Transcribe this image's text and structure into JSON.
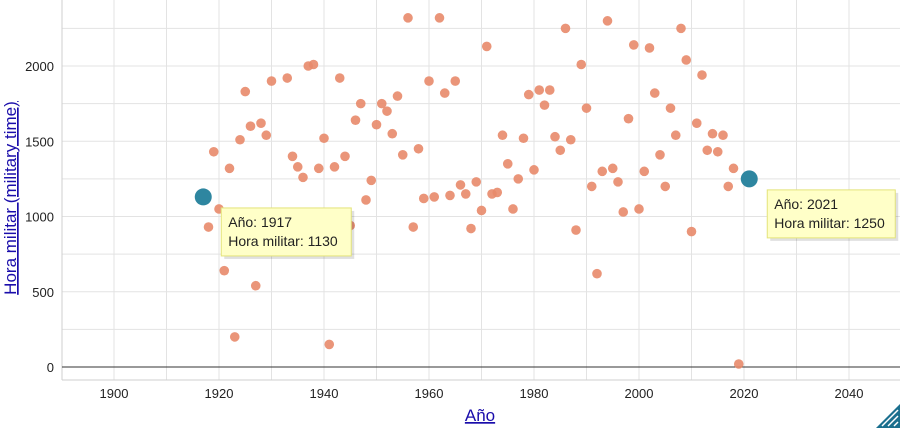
{
  "chart_data": {
    "type": "scatter",
    "xlabel": "Año",
    "ylabel": "Hora militar (military time)",
    "xlim": [
      1890,
      2050
    ],
    "ylim": [
      -50,
      2400
    ],
    "xticks": [
      1900,
      1920,
      1940,
      1960,
      1980,
      2000,
      2020,
      2040
    ],
    "yticks": [
      0,
      500,
      1000,
      1500,
      2000
    ],
    "grid": true,
    "point_color": "#e8896a",
    "highlight_color": "#2e86a0",
    "points": [
      [
        1918,
        930
      ],
      [
        1919,
        1430
      ],
      [
        1920,
        1050
      ],
      [
        1921,
        640
      ],
      [
        1922,
        1320
      ],
      [
        1923,
        200
      ],
      [
        1924,
        1510
      ],
      [
        1925,
        1830
      ],
      [
        1926,
        1600
      ],
      [
        1927,
        540
      ],
      [
        1928,
        1620
      ],
      [
        1929,
        1540
      ],
      [
        1930,
        1900
      ],
      [
        1932,
        1010
      ],
      [
        1933,
        1920
      ],
      [
        1934,
        1400
      ],
      [
        1935,
        1330
      ],
      [
        1936,
        1260
      ],
      [
        1937,
        2000
      ],
      [
        1938,
        2010
      ],
      [
        1939,
        1320
      ],
      [
        1940,
        1520
      ],
      [
        1941,
        150
      ],
      [
        1942,
        1330
      ],
      [
        1943,
        1920
      ],
      [
        1944,
        1400
      ],
      [
        1945,
        940
      ],
      [
        1946,
        1640
      ],
      [
        1947,
        1750
      ],
      [
        1948,
        1110
      ],
      [
        1949,
        1240
      ],
      [
        1950,
        1610
      ],
      [
        1951,
        1750
      ],
      [
        1952,
        1700
      ],
      [
        1953,
        1550
      ],
      [
        1954,
        1800
      ],
      [
        1955,
        1410
      ],
      [
        1956,
        2320
      ],
      [
        1957,
        930
      ],
      [
        1958,
        1450
      ],
      [
        1959,
        1120
      ],
      [
        1960,
        1900
      ],
      [
        1961,
        1130
      ],
      [
        1962,
        2320
      ],
      [
        1963,
        1820
      ],
      [
        1964,
        1140
      ],
      [
        1965,
        1900
      ],
      [
        1966,
        1210
      ],
      [
        1967,
        1150
      ],
      [
        1968,
        920
      ],
      [
        1969,
        1230
      ],
      [
        1970,
        1040
      ],
      [
        1971,
        2130
      ],
      [
        1972,
        1150
      ],
      [
        1973,
        1160
      ],
      [
        1974,
        1540
      ],
      [
        1975,
        1350
      ],
      [
        1976,
        1050
      ],
      [
        1977,
        1250
      ],
      [
        1978,
        1520
      ],
      [
        1979,
        1810
      ],
      [
        1980,
        1310
      ],
      [
        1981,
        1840
      ],
      [
        1982,
        1740
      ],
      [
        1983,
        1840
      ],
      [
        1984,
        1530
      ],
      [
        1985,
        1440
      ],
      [
        1986,
        2250
      ],
      [
        1987,
        1510
      ],
      [
        1988,
        910
      ],
      [
        1989,
        2010
      ],
      [
        1990,
        1720
      ],
      [
        1991,
        1200
      ],
      [
        1992,
        620
      ],
      [
        1993,
        1300
      ],
      [
        1994,
        2300
      ],
      [
        1995,
        1320
      ],
      [
        1996,
        1230
      ],
      [
        1997,
        1030
      ],
      [
        1998,
        1650
      ],
      [
        1999,
        2140
      ],
      [
        2000,
        1050
      ],
      [
        2001,
        1300
      ],
      [
        2002,
        2120
      ],
      [
        2003,
        1820
      ],
      [
        2004,
        1410
      ],
      [
        2005,
        1200
      ],
      [
        2006,
        1720
      ],
      [
        2007,
        1540
      ],
      [
        2008,
        2250
      ],
      [
        2009,
        2040
      ],
      [
        2010,
        900
      ],
      [
        2011,
        1620
      ],
      [
        2012,
        1940
      ],
      [
        2013,
        1440
      ],
      [
        2014,
        1550
      ],
      [
        2015,
        1430
      ],
      [
        2016,
        1540
      ],
      [
        2017,
        1200
      ],
      [
        2018,
        1320
      ],
      [
        2019,
        20
      ]
    ],
    "highlighted": [
      {
        "x": 1917,
        "y": 1130,
        "tooltip_line1": "Año: 1917",
        "tooltip_line2": "Hora militar: 1130"
      },
      {
        "x": 2021,
        "y": 1250,
        "tooltip_line1": "Año: 2021",
        "tooltip_line2": "Hora militar: 1250"
      }
    ]
  }
}
